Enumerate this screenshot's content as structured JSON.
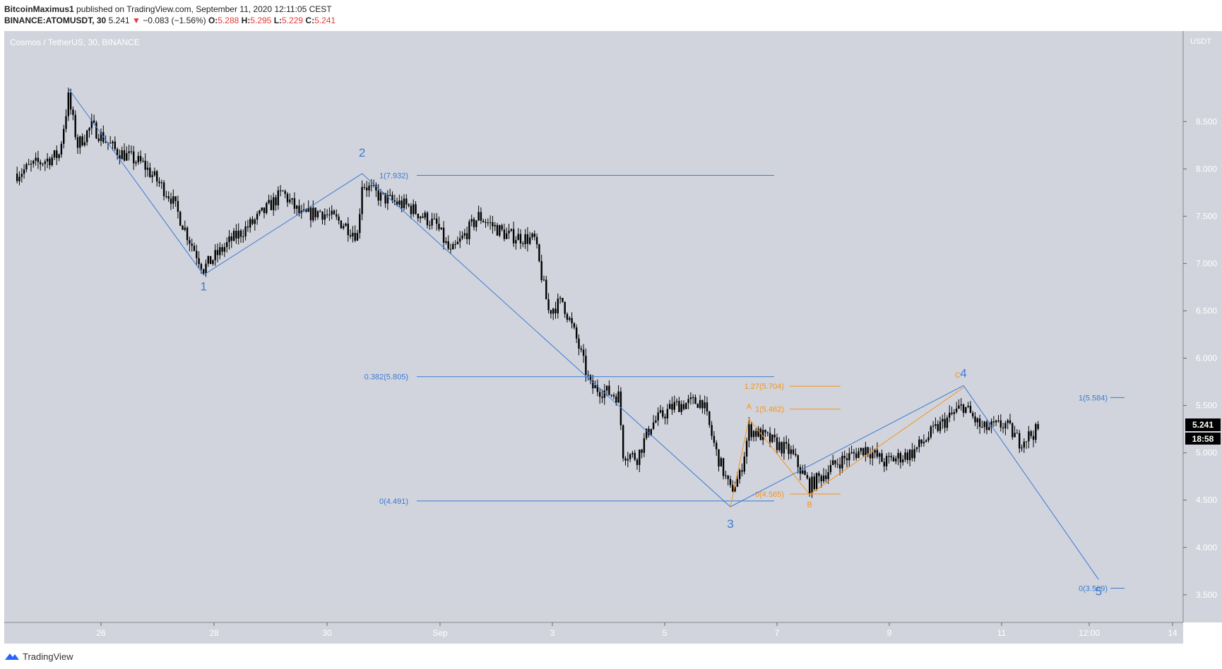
{
  "header": {
    "author": "BitcoinMaximus1",
    "published_text": " published on TradingView.com, September 11, 2020 12:11:05 CEST",
    "symbol": "BINANCE:ATOMUSDT, 30",
    "last": "5.241",
    "change_arrow": "▼",
    "change": "−0.083 (−1.56%)",
    "o_label": "O:",
    "o_val": "5.288",
    "h_label": "H:",
    "h_val": "5.295",
    "l_label": "L:",
    "l_val": "5.229",
    "c_label": "C:",
    "c_val": "5.241"
  },
  "chart_title": "Cosmos / TetherUS, 30, BINANCE",
  "footer": {
    "brand": "TradingView"
  },
  "colors": {
    "bg": "#d1d4dc",
    "wave": "#3a7bd5",
    "fib_orange": "#f7931a",
    "candle": "#000000"
  },
  "chart_data": {
    "type": "candlestick",
    "currency_label": "USDT",
    "y_ticks": [
      "3.500",
      "4.000",
      "4.500",
      "5.000",
      "5.500",
      "6.000",
      "6.500",
      "7.000",
      "7.500",
      "8.000",
      "8.500"
    ],
    "ylim": [
      3.35,
      8.9
    ],
    "x_ticks": [
      "26",
      "28",
      "30",
      "Sep",
      "3",
      "5",
      "7",
      "9",
      "11",
      "12:00",
      "14"
    ],
    "price_label": "5.241",
    "countdown": "18:58",
    "waves": [
      {
        "label": "1",
        "date": "Aug 27 20:00",
        "price": 6.88
      },
      {
        "label": "2",
        "date": "Aug 30 16:00",
        "price": 7.95
      },
      {
        "label": "3",
        "date": "Sep 6 06:00",
        "price": 4.43
      },
      {
        "label": "4",
        "date": "Sep 10 10:00",
        "price": 5.71
      },
      {
        "label": "5",
        "date": "Sep 12 20:00",
        "price": 3.66
      }
    ],
    "start_point": {
      "date": "Aug 25 10:00",
      "price": 8.85
    },
    "abc": [
      {
        "label": "A",
        "date": "Sep 6 14:00",
        "price": 5.36
      },
      {
        "label": "B",
        "date": "Sep 7 16:00",
        "price": 4.56
      },
      {
        "label": "C",
        "date": "Sep 10 10:00",
        "price": 5.69
      }
    ],
    "fib_blue": [
      {
        "label": "1(7.932)",
        "price": 7.932
      },
      {
        "label": "0.382(5.805)",
        "price": 5.805
      },
      {
        "label": "0(4.491)",
        "price": 4.491
      }
    ],
    "fib_orange": [
      {
        "label": "1.27(5.704)",
        "price": 5.704
      },
      {
        "label": "1(5.462)",
        "price": 5.462
      },
      {
        "label": "0(4.565)",
        "price": 4.565
      }
    ],
    "fib_right": [
      {
        "label": "1(5.584)",
        "price": 5.584
      },
      {
        "label": "0(3.569)",
        "price": 3.569
      }
    ],
    "price_path": [
      {
        "date": "Aug 24 12:00",
        "price": 7.95
      },
      {
        "date": "Aug 24 20:00",
        "price": 8.05
      },
      {
        "date": "Aug 25 06:00",
        "price": 8.15
      },
      {
        "date": "Aug 25 10:00",
        "price": 8.75
      },
      {
        "date": "Aug 25 14:00",
        "price": 8.25
      },
      {
        "date": "Aug 25 20:00",
        "price": 8.45
      },
      {
        "date": "Aug 26 06:00",
        "price": 8.2
      },
      {
        "date": "Aug 26 18:00",
        "price": 8.05
      },
      {
        "date": "Aug 27 06:00",
        "price": 7.7
      },
      {
        "date": "Aug 27 14:00",
        "price": 7.25
      },
      {
        "date": "Aug 27 20:00",
        "price": 6.95
      },
      {
        "date": "Aug 28 08:00",
        "price": 7.25
      },
      {
        "date": "Aug 28 18:00",
        "price": 7.45
      },
      {
        "date": "Aug 29 06:00",
        "price": 7.75
      },
      {
        "date": "Aug 29 14:00",
        "price": 7.5
      },
      {
        "date": "Aug 29 22:00",
        "price": 7.55
      },
      {
        "date": "Aug 30 08:00",
        "price": 7.42
      },
      {
        "date": "Aug 30 14:00",
        "price": 7.3
      },
      {
        "date": "Aug 30 16:00",
        "price": 7.85
      },
      {
        "date": "Aug 31 00:00",
        "price": 7.7
      },
      {
        "date": "Aug 31 12:00",
        "price": 7.6
      },
      {
        "date": "Sep 1 00:00",
        "price": 7.4
      },
      {
        "date": "Sep 1 06:00",
        "price": 7.1
      },
      {
        "date": "Sep 1 18:00",
        "price": 7.5
      },
      {
        "date": "Sep 2 06:00",
        "price": 7.3
      },
      {
        "date": "Sep 2 18:00",
        "price": 7.25
      },
      {
        "date": "Sep 3 00:00",
        "price": 6.5
      },
      {
        "date": "Sep 3 06:00",
        "price": 6.6
      },
      {
        "date": "Sep 3 12:00",
        "price": 6.2
      },
      {
        "date": "Sep 3 18:00",
        "price": 5.7
      },
      {
        "date": "Sep 4 06:00",
        "price": 5.6
      },
      {
        "date": "Sep 4 08:00",
        "price": 5.0
      },
      {
        "date": "Sep 4 14:00",
        "price": 4.95
      },
      {
        "date": "Sep 4 20:00",
        "price": 5.3
      },
      {
        "date": "Sep 5 06:00",
        "price": 5.5
      },
      {
        "date": "Sep 5 18:00",
        "price": 5.55
      },
      {
        "date": "Sep 6 00:00",
        "price": 5.0
      },
      {
        "date": "Sep 6 06:00",
        "price": 4.6
      },
      {
        "date": "Sep 6 10:00",
        "price": 4.75
      },
      {
        "date": "Sep 6 14:00",
        "price": 5.25
      },
      {
        "date": "Sep 6 22:00",
        "price": 5.15
      },
      {
        "date": "Sep 7 08:00",
        "price": 5.0
      },
      {
        "date": "Sep 7 16:00",
        "price": 4.65
      },
      {
        "date": "Sep 8 04:00",
        "price": 4.9
      },
      {
        "date": "Sep 8 16:00",
        "price": 5.05
      },
      {
        "date": "Sep 9 00:00",
        "price": 4.9
      },
      {
        "date": "Sep 9 12:00",
        "price": 5.0
      },
      {
        "date": "Sep 9 22:00",
        "price": 5.25
      },
      {
        "date": "Sep 10 10:00",
        "price": 5.5
      },
      {
        "date": "Sep 10 18:00",
        "price": 5.25
      },
      {
        "date": "Sep 11 04:00",
        "price": 5.3
      },
      {
        "date": "Sep 11 10:00",
        "price": 5.12
      },
      {
        "date": "Sep 11 18:00",
        "price": 5.24
      }
    ]
  }
}
